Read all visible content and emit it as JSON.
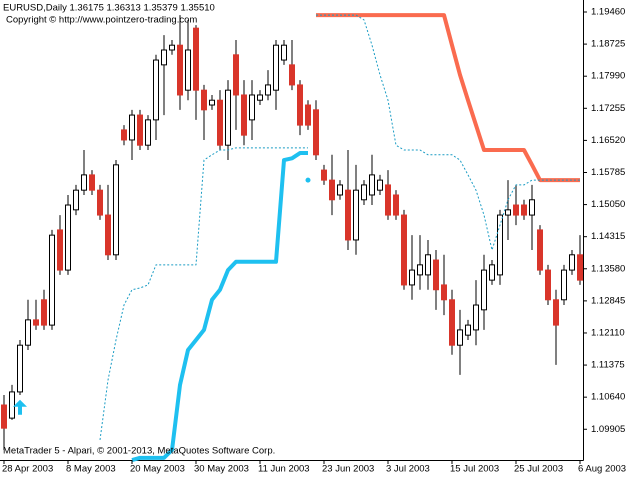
{
  "chart_data": {
    "type": "candlestick",
    "title": "EURUSD,Daily  1.36175 1.36313 1.35379 1.35510",
    "subtitle": "Copyright © http://www.pointzero-trading.com",
    "footer": "MetaTrader 5 - Alpari, © 2001-2013, MetaQuotes Software Corp.",
    "categories": [
      "28 Apr 2003",
      null,
      null,
      null,
      null,
      null,
      null,
      null,
      "8 May 2003",
      null,
      null,
      null,
      null,
      null,
      null,
      null,
      "20 May 2003",
      null,
      null,
      null,
      null,
      null,
      null,
      null,
      "30 May 2003",
      null,
      null,
      null,
      null,
      null,
      null,
      null,
      "11 Jun 2003",
      null,
      null,
      null,
      null,
      null,
      null,
      null,
      "23 Jun 2003",
      null,
      null,
      null,
      null,
      null,
      null,
      null,
      "3 Jul 2003",
      null,
      null,
      null,
      null,
      null,
      null,
      null,
      "15 Jul 2003",
      null,
      null,
      null,
      null,
      null,
      null,
      null,
      "25 Jul 2003",
      null,
      null,
      null,
      null,
      null,
      null,
      null,
      "6 Aug 2003"
    ],
    "open": [
      1.1046,
      1.1016,
      1.1076,
      1.1183,
      1.1241,
      1.1287,
      1.1229,
      1.1447,
      1.1355,
      1.1493,
      1.1538,
      1.1573,
      1.1538,
      1.1481,
      1.139,
      1.1676,
      1.1653,
      1.171,
      1.1641,
      1.1699,
      1.1825,
      1.1859,
      1.187,
      1.1767,
      1.1909,
      1.1767,
      1.1733,
      1.1744,
      1.1641,
      1.1848,
      1.1756,
      1.1699,
      1.1744,
      1.1756,
      1.1767,
      1.1836,
      1.1825,
      1.1779,
      1.1733,
      1.1722,
      1.1584,
      1.1561,
      1.1527,
      1.1538,
      1.1424,
      1.1516,
      1.1527,
      1.1538,
      1.155,
      1.1527,
      1.1481,
      1.1321,
      1.1344,
      1.1344,
      1.1378,
      1.1321,
      1.1287,
      1.1183,
      1.1206,
      1.1218,
      1.1264,
      1.1332,
      1.1344,
      1.1481,
      1.1504,
      1.1504,
      1.1481,
      1.1447,
      1.1355,
      1.1287,
      1.1287,
      1.1355,
      1.139
    ],
    "high": [
      1.1069,
      1.1092,
      1.1195,
      1.1287,
      1.1287,
      1.131,
      1.1447,
      1.1481,
      1.1527,
      1.155,
      1.163,
      1.1584,
      1.155,
      1.155,
      1.1607,
      1.1687,
      1.1722,
      1.1722,
      1.171,
      1.1848,
      1.1893,
      1.1882,
      1.1939,
      1.1928,
      1.1916,
      1.1779,
      1.1756,
      1.1767,
      1.179,
      1.1882,
      1.179,
      1.179,
      1.1767,
      1.1813,
      1.1882,
      1.1882,
      1.1882,
      1.179,
      1.1744,
      1.1744,
      1.1596,
      1.1619,
      1.1561,
      1.163,
      1.1596,
      1.1561,
      1.1619,
      1.1573,
      1.1584,
      1.1538,
      1.1493,
      1.1435,
      1.1435,
      1.1424,
      1.1401,
      1.139,
      1.131,
      1.1264,
      1.1241,
      1.1332,
      1.139,
      1.1378,
      1.1493,
      1.1561,
      1.155,
      1.1516,
      1.155,
      1.1458,
      1.1367,
      1.131,
      1.1367,
      1.1401,
      1.1435
    ],
    "low": [
      1.0943,
      1.1012,
      1.1069,
      1.1172,
      1.1218,
      1.1218,
      1.1218,
      1.1344,
      1.1344,
      1.1481,
      1.1527,
      1.1527,
      1.147,
      1.1378,
      1.1378,
      1.1641,
      1.1607,
      1.163,
      1.163,
      1.1653,
      1.171,
      1.1848,
      1.1722,
      1.1744,
      1.1699,
      1.1653,
      1.1722,
      1.163,
      1.1607,
      1.1676,
      1.1641,
      1.1653,
      1.1733,
      1.1744,
      1.1722,
      1.1825,
      1.1767,
      1.1664,
      1.1676,
      1.1607,
      1.155,
      1.1481,
      1.1516,
      1.1401,
      1.139,
      1.1504,
      1.1504,
      1.1527,
      1.147,
      1.147,
      1.131,
      1.1287,
      1.131,
      1.131,
      1.1264,
      1.1252,
      1.1161,
      1.1115,
      1.1195,
      1.1183,
      1.1218,
      1.1321,
      1.1321,
      1.1424,
      1.1458,
      1.147,
      1.1401,
      1.1344,
      1.1275,
      1.1138,
      1.1275,
      1.1344,
      1.1321
    ],
    "close": [
      1.0993,
      1.1076,
      1.1183,
      1.1241,
      1.1229,
      1.1229,
      1.1435,
      1.1355,
      1.1504,
      1.1538,
      1.1573,
      1.1538,
      1.1481,
      1.139,
      1.1596,
      1.1653,
      1.171,
      1.1641,
      1.1699,
      1.1836,
      1.1859,
      1.187,
      1.1756,
      1.1859,
      1.1767,
      1.1722,
      1.1744,
      1.1641,
      1.1767,
      1.1756,
      1.1664,
      1.1756,
      1.1756,
      1.1779,
      1.187,
      1.187,
      1.1779,
      1.1687,
      1.1687,
      1.1619,
      1.1561,
      1.1516,
      1.155,
      1.1424,
      1.1538,
      1.155,
      1.1573,
      1.1561,
      1.1481,
      1.1481,
      1.1321,
      1.1355,
      1.1367,
      1.139,
      1.131,
      1.1287,
      1.1183,
      1.1218,
      1.1229,
      1.1275,
      1.1355,
      1.1367,
      1.1481,
      1.1493,
      1.1481,
      1.1481,
      1.1516,
      1.1355,
      1.1287,
      1.1229,
      1.1355,
      1.139,
      1.1332
    ],
    "up_color": "#ffffff",
    "down_color": "#d9352a",
    "lines": [
      {
        "color": "#fa6b4f",
        "width": 4,
        "dashed": false,
        "values": [
          null,
          null,
          null,
          null,
          null,
          null,
          null,
          null,
          null,
          null,
          null,
          null,
          null,
          null,
          null,
          null,
          null,
          null,
          null,
          null,
          null,
          null,
          null,
          null,
          null,
          null,
          null,
          null,
          null,
          null,
          null,
          null,
          null,
          null,
          null,
          null,
          null,
          null,
          null,
          1.1939,
          1.1939,
          1.1939,
          1.1939,
          1.1939,
          1.1939,
          1.1939,
          1.1939,
          1.1939,
          1.1939,
          1.1939,
          1.1939,
          1.1939,
          1.1939,
          1.1939,
          1.1939,
          1.1939,
          1.187,
          1.1802,
          1.1744,
          1.1687,
          1.163,
          1.163,
          1.163,
          1.163,
          1.163,
          1.163,
          1.1596,
          1.1561,
          1.1561,
          1.1561,
          1.1561,
          1.1561,
          1.1561
        ]
      },
      {
        "color": "#1ec0f0",
        "width": 4,
        "dashed": false,
        "values": [
          null,
          null,
          null,
          null,
          null,
          null,
          null,
          null,
          null,
          null,
          null,
          null,
          null,
          null,
          null,
          null,
          1.092,
          1.0925,
          1.0925,
          1.0925,
          1.0925,
          1.0943,
          1.1092,
          1.1172,
          1.1195,
          1.1218,
          1.1287,
          1.131,
          1.1355,
          1.1374,
          1.1374,
          1.1374,
          1.1374,
          1.1374,
          1.1374,
          1.1607,
          1.1611,
          1.1623,
          1.1623,
          null,
          null,
          null,
          null,
          null,
          null,
          null,
          null,
          null,
          null,
          null,
          null,
          null,
          null,
          null,
          null,
          null,
          null,
          null,
          null,
          null,
          null,
          null,
          null,
          null,
          null,
          null,
          null,
          null,
          null,
          null,
          null,
          null,
          null
        ]
      },
      {
        "color": "#1a9cc4",
        "width": 1,
        "dashed": true,
        "values": [
          null,
          null,
          null,
          null,
          null,
          null,
          null,
          null,
          null,
          null,
          null,
          null,
          1.0966,
          1.1103,
          1.1195,
          1.1275,
          1.131,
          1.1314,
          1.1321,
          1.1367,
          1.1367,
          1.1367,
          1.1367,
          1.1367,
          1.1367,
          1.1607,
          1.1619,
          1.163,
          1.163,
          1.1635,
          1.1635,
          1.1635,
          1.1635,
          1.1635,
          1.1635,
          1.1635,
          1.1635,
          1.1635,
          1.1635,
          null,
          null,
          null,
          null,
          null,
          null,
          null,
          null,
          null,
          null,
          null,
          null,
          null,
          null,
          null,
          null,
          null,
          null,
          null,
          null,
          null,
          null,
          null,
          null,
          null,
          null,
          null,
          null,
          null,
          null,
          null,
          null,
          null,
          null
        ]
      },
      {
        "color": "#1a9cc4",
        "width": 1,
        "dashed": true,
        "values": [
          null,
          null,
          null,
          null,
          null,
          null,
          null,
          null,
          null,
          null,
          null,
          null,
          null,
          null,
          null,
          null,
          null,
          null,
          null,
          null,
          null,
          null,
          null,
          null,
          null,
          null,
          null,
          null,
          null,
          null,
          null,
          null,
          null,
          null,
          null,
          null,
          null,
          null,
          null,
          1.1939,
          1.1939,
          1.1939,
          1.1939,
          1.1939,
          1.1939,
          1.1928,
          1.187,
          1.1802,
          1.1744,
          1.1641,
          1.163,
          1.163,
          1.163,
          1.1619,
          1.1619,
          1.1619,
          1.1619,
          1.1607,
          1.1573,
          1.1538,
          1.1481,
          1.1401,
          1.1458,
          1.1516,
          1.155,
          1.155,
          1.1561,
          1.1561,
          1.1561,
          1.1561,
          1.1561,
          1.1561,
          1.1561
        ]
      }
    ],
    "markers": [
      {
        "shape": "arrow-up",
        "color": "#1ec0f0",
        "values": [
          null,
          null,
          1.1058,
          null,
          null,
          null,
          null,
          null,
          null,
          null,
          null,
          null,
          null,
          null,
          null,
          null,
          null,
          null,
          null,
          null,
          null,
          null,
          null,
          null,
          null,
          null,
          null,
          null,
          null,
          null,
          null,
          null,
          null,
          null,
          null,
          null,
          null,
          null,
          null,
          null,
          null,
          null,
          null,
          null,
          null,
          null,
          null,
          null,
          null,
          null,
          null,
          null,
          null,
          null,
          null,
          null,
          null,
          null,
          null,
          null,
          null,
          null,
          null,
          null,
          null,
          null,
          null,
          null,
          null,
          null,
          null,
          null,
          null
        ]
      },
      {
        "shape": "dot",
        "color": "#1ec0f0",
        "values": [
          null,
          null,
          null,
          null,
          null,
          null,
          null,
          null,
          null,
          null,
          null,
          null,
          null,
          null,
          null,
          null,
          null,
          null,
          null,
          null,
          null,
          null,
          null,
          null,
          null,
          null,
          null,
          null,
          null,
          null,
          null,
          null,
          null,
          null,
          null,
          null,
          null,
          null,
          1.1561,
          null,
          null,
          null,
          null,
          null,
          null,
          null,
          null,
          null,
          null,
          null,
          null,
          null,
          null,
          null,
          null,
          null,
          null,
          null,
          null,
          null,
          null,
          null,
          null,
          null,
          null,
          null,
          null,
          null,
          null,
          null,
          null,
          null,
          null
        ]
      }
    ],
    "ylim": [
      1.09201,
      1.19735
    ],
    "yticks": [
      {
        "value": 1.1946,
        "label": "1.19460"
      },
      {
        "value": 1.18725,
        "label": "1.18725"
      },
      {
        "value": 1.1799,
        "label": "1.17990"
      },
      {
        "value": 1.17255,
        "label": "1.17255"
      },
      {
        "value": 1.1652,
        "label": "1.16520"
      },
      {
        "value": 1.15785,
        "label": "1.15785"
      },
      {
        "value": 1.1505,
        "label": "1.15050"
      },
      {
        "value": 1.14315,
        "label": "1.14315"
      },
      {
        "value": 1.1358,
        "label": "1.13580"
      },
      {
        "value": 1.12845,
        "label": "1.12845"
      },
      {
        "value": 1.1211,
        "label": "1.12110"
      },
      {
        "value": 1.11375,
        "label": "1.11375"
      },
      {
        "value": 1.1064,
        "label": "1.10640"
      },
      {
        "value": 1.09905,
        "label": "1.09905"
      }
    ]
  }
}
